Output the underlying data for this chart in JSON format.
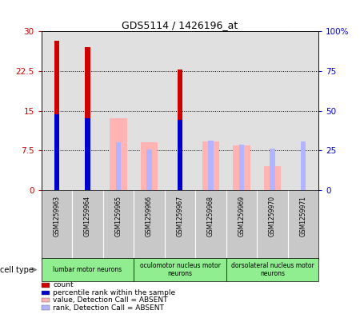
{
  "title": "GDS5114 / 1426196_at",
  "samples": [
    "GSM1259963",
    "GSM1259964",
    "GSM1259965",
    "GSM1259966",
    "GSM1259967",
    "GSM1259968",
    "GSM1259969",
    "GSM1259970",
    "GSM1259971"
  ],
  "count_values": [
    28.2,
    27.0,
    0,
    0,
    22.8,
    0,
    0,
    0,
    0
  ],
  "rank_values_pct": [
    48.0,
    45.0,
    0,
    0,
    44.0,
    0,
    0,
    0,
    0
  ],
  "absent_value_values": [
    0,
    0,
    13.5,
    9.0,
    0,
    9.2,
    8.5,
    4.5,
    0
  ],
  "absent_rank_pct": [
    0,
    0,
    30.0,
    25.5,
    0,
    31.0,
    28.5,
    26.0,
    30.5
  ],
  "count_color": "#cc0000",
  "rank_color": "#0000cc",
  "absent_value_color": "#ffb3b3",
  "absent_rank_color": "#b3b3ff",
  "left_ylim": [
    0,
    30
  ],
  "right_ylim": [
    0,
    100
  ],
  "left_yticks": [
    0,
    7.5,
    15,
    22.5,
    30
  ],
  "left_yticklabels": [
    "0",
    "7.5",
    "15",
    "22.5",
    "30"
  ],
  "right_yticks": [
    0,
    25,
    50,
    75,
    100
  ],
  "right_yticklabels": [
    "0",
    "25",
    "50",
    "75",
    "100%"
  ],
  "cell_types": [
    {
      "label": "lumbar motor neurons",
      "start": 0,
      "end": 2
    },
    {
      "label": "oculomotor nucleus motor\nneurons",
      "start": 3,
      "end": 5
    },
    {
      "label": "dorsolateral nucleus motor\nneurons",
      "start": 6,
      "end": 8
    }
  ],
  "cell_type_label": "cell type",
  "legend_items": [
    {
      "color": "#cc0000",
      "label": "count"
    },
    {
      "color": "#0000cc",
      "label": "percentile rank within the sample"
    },
    {
      "color": "#ffb3b3",
      "label": "value, Detection Call = ABSENT"
    },
    {
      "color": "#b3b3ff",
      "label": "rank, Detection Call = ABSENT"
    }
  ],
  "wide_bar_width": 0.55,
  "narrow_bar_width": 0.18,
  "background_color": "#ffffff",
  "plot_bg_color": "#e0e0e0",
  "xlabel_bg_color": "#c8c8c8"
}
